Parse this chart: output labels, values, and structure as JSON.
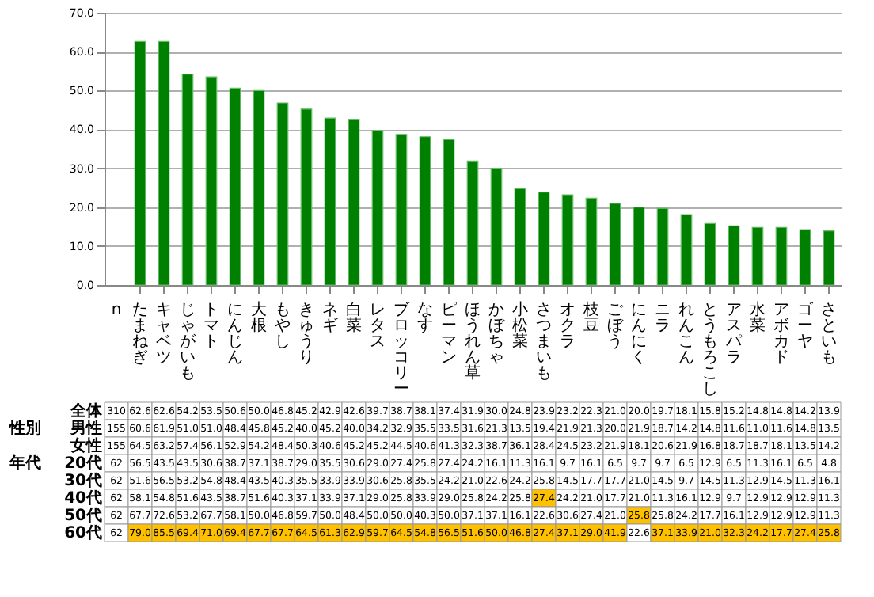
{
  "chart_data": [
    {
      "type": "bar",
      "categories": [
        "たまねぎ",
        "キャベツ",
        "じゃがいも",
        "トマト",
        "にんじん",
        "大根",
        "もやし",
        "きゅうり",
        "ネギ",
        "白菜",
        "レタス",
        "ブロッコリー",
        "なす",
        "ピーマン",
        "ほうれん草",
        "かぼちゃ",
        "小松菜",
        "さつまいも",
        "オクラ",
        "枝豆",
        "ごぼう",
        "にんにく",
        "ニラ",
        "れんこん",
        "とうもろこし",
        "アスパラ",
        "水菜",
        "アボカド",
        "ゴーヤ",
        "さといも"
      ],
      "values": [
        62.6,
        62.6,
        54.2,
        53.5,
        50.6,
        50.0,
        46.8,
        45.2,
        42.9,
        42.6,
        39.7,
        38.7,
        38.1,
        37.4,
        31.9,
        30.0,
        24.8,
        23.9,
        23.2,
        22.3,
        21.0,
        20.0,
        19.7,
        18.1,
        15.8,
        15.2,
        14.8,
        14.8,
        14.2,
        13.9
      ],
      "color": "#008000",
      "ylim": [
        0,
        70
      ],
      "yticks": [
        {
          "value": 0,
          "label": "0.0"
        },
        {
          "value": 10,
          "label": "10.0"
        },
        {
          "value": 20,
          "label": "20.0"
        },
        {
          "value": 30,
          "label": "30.0"
        },
        {
          "value": 40,
          "label": "40.0"
        },
        {
          "value": 50,
          "label": "50.0"
        },
        {
          "value": 60,
          "label": "60.0"
        },
        {
          "value": 70,
          "label": "70.0"
        }
      ],
      "grid": "y",
      "tick_labels": "y"
    },
    {
      "type": "heatmap",
      "categories": [
        "n",
        "たまねぎ",
        "キャベツ",
        "じゃがいも",
        "トマト",
        "にんじん",
        "大根",
        "もやし",
        "きゅうり",
        "ネギ",
        "白菜",
        "レタス",
        "ブロッコリー",
        "なす",
        "ピーマン",
        "ほうれん草",
        "かぼちゃ",
        "小松菜",
        "さつまいも",
        "オクラ",
        "枝豆",
        "ごぼう",
        "にんにく",
        "ニラ",
        "れんこん",
        "とうもろこし",
        "アスパラ",
        "水菜",
        "アボカド",
        "ゴーヤ",
        "さといも"
      ],
      "y_categories": [
        "全体",
        "男性",
        "女性",
        "20代",
        "30代",
        "40代",
        "50代",
        "60代"
      ],
      "cells": [
        [
          310,
          62.6,
          62.6,
          54.2,
          53.5,
          50.6,
          50.0,
          46.8,
          45.2,
          42.9,
          42.6,
          39.7,
          38.7,
          38.1,
          37.4,
          31.9,
          30.0,
          24.8,
          23.9,
          23.2,
          22.3,
          21.0,
          20.0,
          19.7,
          18.1,
          15.8,
          15.2,
          14.8,
          14.8,
          14.2,
          13.9
        ],
        [
          155,
          60.6,
          61.9,
          51.0,
          51.0,
          48.4,
          45.8,
          45.2,
          40.0,
          45.2,
          40.0,
          34.2,
          32.9,
          35.5,
          33.5,
          31.6,
          21.3,
          13.5,
          19.4,
          21.9,
          21.3,
          20.0,
          21.9,
          18.7,
          14.2,
          14.8,
          11.6,
          11.0,
          11.6,
          14.8,
          13.5
        ],
        [
          155,
          64.5,
          63.2,
          57.4,
          56.1,
          52.9,
          54.2,
          48.4,
          50.3,
          40.6,
          45.2,
          45.2,
          44.5,
          40.6,
          41.3,
          32.3,
          38.7,
          36.1,
          28.4,
          24.5,
          23.2,
          21.9,
          18.1,
          20.6,
          21.9,
          16.8,
          18.7,
          18.7,
          18.1,
          13.5,
          14.2
        ],
        [
          62,
          56.5,
          43.5,
          43.5,
          30.6,
          38.7,
          37.1,
          38.7,
          29.0,
          35.5,
          30.6,
          29.0,
          27.4,
          25.8,
          27.4,
          24.2,
          16.1,
          11.3,
          16.1,
          9.7,
          16.1,
          6.5,
          9.7,
          9.7,
          6.5,
          12.9,
          6.5,
          11.3,
          16.1,
          6.5,
          4.8
        ],
        [
          62,
          51.6,
          56.5,
          53.2,
          54.8,
          48.4,
          43.5,
          40.3,
          35.5,
          33.9,
          33.9,
          30.6,
          25.8,
          35.5,
          24.2,
          21.0,
          22.6,
          24.2,
          25.8,
          14.5,
          17.7,
          17.7,
          21.0,
          14.5,
          9.7,
          14.5,
          11.3,
          12.9,
          14.5,
          11.3,
          16.1
        ],
        [
          62,
          58.1,
          54.8,
          51.6,
          43.5,
          38.7,
          51.6,
          40.3,
          37.1,
          33.9,
          37.1,
          29.0,
          25.8,
          33.9,
          29.0,
          25.8,
          24.2,
          25.8,
          27.4,
          24.2,
          21.0,
          17.7,
          21.0,
          11.3,
          16.1,
          12.9,
          9.7,
          12.9,
          12.9,
          12.9,
          11.3
        ],
        [
          62,
          67.7,
          72.6,
          53.2,
          67.7,
          58.1,
          50.0,
          46.8,
          59.7,
          50.0,
          48.4,
          50.0,
          50.0,
          40.3,
          50.0,
          37.1,
          37.1,
          16.1,
          22.6,
          30.6,
          27.4,
          21.0,
          25.8,
          25.8,
          24.2,
          17.7,
          16.1,
          12.9,
          12.9,
          12.9,
          11.3
        ],
        [
          62,
          79.0,
          85.5,
          69.4,
          71.0,
          69.4,
          67.7,
          67.7,
          64.5,
          61.3,
          62.9,
          59.7,
          64.5,
          54.8,
          56.5,
          51.6,
          50.0,
          46.8,
          27.4,
          37.1,
          29.0,
          41.9,
          22.6,
          37.1,
          33.9,
          21.0,
          32.3,
          24.2,
          17.7,
          27.4,
          25.8
        ]
      ],
      "colors": [
        [
          null,
          null,
          null,
          null,
          null,
          null,
          null,
          null,
          null,
          null,
          null,
          null,
          null,
          null,
          null,
          null,
          null,
          null,
          null,
          null,
          null,
          null,
          null,
          null,
          null,
          null,
          null,
          null,
          null,
          null,
          null
        ],
        [
          null,
          null,
          null,
          null,
          null,
          null,
          null,
          null,
          null,
          null,
          null,
          null,
          null,
          null,
          null,
          null,
          null,
          null,
          null,
          null,
          null,
          null,
          null,
          null,
          null,
          null,
          null,
          null,
          null,
          null,
          null
        ],
        [
          null,
          null,
          null,
          null,
          null,
          null,
          null,
          null,
          null,
          null,
          null,
          null,
          null,
          null,
          null,
          null,
          null,
          null,
          null,
          null,
          null,
          null,
          null,
          null,
          null,
          null,
          null,
          null,
          null,
          null,
          null
        ],
        [
          null,
          null,
          null,
          null,
          null,
          null,
          null,
          null,
          null,
          null,
          null,
          null,
          null,
          null,
          null,
          null,
          null,
          null,
          null,
          null,
          null,
          null,
          null,
          null,
          null,
          null,
          null,
          null,
          null,
          null,
          null
        ],
        [
          null,
          null,
          null,
          null,
          null,
          null,
          null,
          null,
          null,
          null,
          null,
          null,
          null,
          null,
          null,
          null,
          null,
          null,
          null,
          null,
          null,
          null,
          null,
          null,
          null,
          null,
          null,
          null,
          null,
          null,
          null
        ],
        [
          null,
          null,
          null,
          null,
          null,
          null,
          null,
          null,
          null,
          null,
          null,
          null,
          null,
          null,
          null,
          null,
          null,
          null,
          "#ffc000",
          null,
          null,
          null,
          null,
          null,
          null,
          null,
          null,
          null,
          null,
          null,
          null
        ],
        [
          null,
          null,
          null,
          null,
          null,
          null,
          null,
          null,
          null,
          null,
          null,
          null,
          null,
          null,
          null,
          null,
          null,
          null,
          null,
          null,
          null,
          null,
          "#ffc000",
          null,
          null,
          null,
          null,
          null,
          null,
          null,
          null
        ],
        [
          null,
          "#ffc000",
          "#ffc000",
          "#ffc000",
          "#ffc000",
          "#ffc000",
          "#ffc000",
          "#ffc000",
          "#ffc000",
          "#ffc000",
          "#ffc000",
          "#ffc000",
          "#ffc000",
          "#ffc000",
          "#ffc000",
          "#ffc000",
          "#ffc000",
          "#ffc000",
          "#ffc000",
          "#ffc000",
          "#ffc000",
          "#ffc000",
          null,
          "#ffc000",
          "#ffc000",
          "#ffc000",
          "#ffc000",
          "#ffc000",
          "#ffc000",
          "#ffc000",
          "#ffc000"
        ]
      ],
      "cell_labels": [
        [
          "310",
          "62.6",
          "62.6",
          "54.2",
          "53.5",
          "50.6",
          "50.0",
          "46.8",
          "45.2",
          "42.9",
          "42.6",
          "39.7",
          "38.7",
          "38.1",
          "37.4",
          "31.9",
          "30.0",
          "24.8",
          "23.9",
          "23.2",
          "22.3",
          "21.0",
          "20.0",
          "19.7",
          "18.1",
          "15.8",
          "15.2",
          "14.8",
          "14.8",
          "14.2",
          "13.9"
        ],
        [
          "155",
          "60.6",
          "61.9",
          "51.0",
          "51.0",
          "48.4",
          "45.8",
          "45.2",
          "40.0",
          "45.2",
          "40.0",
          "34.2",
          "32.9",
          "35.5",
          "33.5",
          "31.6",
          "21.3",
          "13.5",
          "19.4",
          "21.9",
          "21.3",
          "20.0",
          "21.9",
          "18.7",
          "14.2",
          "14.8",
          "11.6",
          "11.0",
          "11.6",
          "14.8",
          "13.5"
        ],
        [
          "155",
          "64.5",
          "63.2",
          "57.4",
          "56.1",
          "52.9",
          "54.2",
          "48.4",
          "50.3",
          "40.6",
          "45.2",
          "45.2",
          "44.5",
          "40.6",
          "41.3",
          "32.3",
          "38.7",
          "36.1",
          "28.4",
          "24.5",
          "23.2",
          "21.9",
          "18.1",
          "20.6",
          "21.9",
          "16.8",
          "18.7",
          "18.7",
          "18.1",
          "13.5",
          "14.2"
        ],
        [
          "62",
          "56.5",
          "43.5",
          "43.5",
          "30.6",
          "38.7",
          "37.1",
          "38.7",
          "29.0",
          "35.5",
          "30.6",
          "29.0",
          "27.4",
          "25.8",
          "27.4",
          "24.2",
          "16.1",
          "11.3",
          "16.1",
          "9.7",
          "16.1",
          "6.5",
          "9.7",
          "9.7",
          "6.5",
          "12.9",
          "6.5",
          "11.3",
          "16.1",
          "6.5",
          "4.8"
        ],
        [
          "62",
          "51.6",
          "56.5",
          "53.2",
          "54.8",
          "48.4",
          "43.5",
          "40.3",
          "35.5",
          "33.9",
          "33.9",
          "30.6",
          "25.8",
          "35.5",
          "24.2",
          "21.0",
          "22.6",
          "24.2",
          "25.8",
          "14.5",
          "17.7",
          "17.7",
          "21.0",
          "14.5",
          "9.7",
          "14.5",
          "11.3",
          "12.9",
          "14.5",
          "11.3",
          "16.1"
        ],
        [
          "62",
          "58.1",
          "54.8",
          "51.6",
          "43.5",
          "38.7",
          "51.6",
          "40.3",
          "37.1",
          "33.9",
          "37.1",
          "29.0",
          "25.8",
          "33.9",
          "29.0",
          "25.8",
          "24.2",
          "25.8",
          "27.4",
          "24.2",
          "21.0",
          "17.7",
          "21.0",
          "11.3",
          "16.1",
          "12.9",
          "9.7",
          "12.9",
          "12.9",
          "12.9",
          "11.3"
        ],
        [
          "62",
          "67.7",
          "72.6",
          "53.2",
          "67.7",
          "58.1",
          "50.0",
          "46.8",
          "59.7",
          "50.0",
          "48.4",
          "50.0",
          "50.0",
          "40.3",
          "50.0",
          "37.1",
          "37.1",
          "16.1",
          "22.6",
          "30.6",
          "27.4",
          "21.0",
          "25.8",
          "25.8",
          "24.2",
          "17.7",
          "16.1",
          "12.9",
          "12.9",
          "12.9",
          "11.3"
        ],
        [
          "62",
          "79.0",
          "85.5",
          "69.4",
          "71.0",
          "69.4",
          "67.7",
          "67.7",
          "64.5",
          "61.3",
          "62.9",
          "59.7",
          "64.5",
          "54.8",
          "56.5",
          "51.6",
          "50.0",
          "46.8",
          "27.4",
          "37.1",
          "29.0",
          "41.9",
          "22.6",
          "37.1",
          "33.9",
          "21.0",
          "32.3",
          "24.2",
          "17.7",
          "27.4",
          "25.8"
        ]
      ],
      "annotations": [
        "性別",
        "年代"
      ],
      "data_labels": true
    }
  ]
}
